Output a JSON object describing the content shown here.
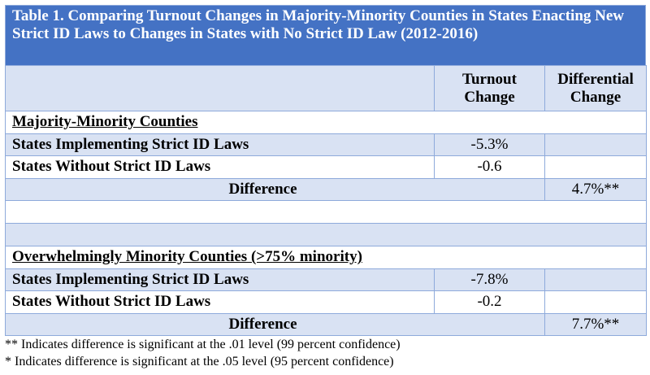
{
  "table": {
    "title": "Table 1.  Comparing Turnout Changes in Majority-Minority Counties in States Enacting New Strict ID Laws to Changes in States with No Strict ID Law (2012-2016)",
    "col_turnout": "Turnout Change",
    "col_differential": "Differential Change",
    "sections": [
      {
        "heading": "Majority-Minority Counties",
        "row1_label": "States Implementing Strict ID Laws",
        "row1_value": "-5.3%",
        "row2_label": "States Without Strict ID Laws",
        "row2_value": "-0.6",
        "diff_label": "Difference",
        "diff_value": "4.7%**"
      },
      {
        "heading": "Overwhelmingly Minority Counties (>75% minority)",
        "row1_label": "States Implementing Strict ID Laws",
        "row1_value": "-7.8%",
        "row2_label": "States Without Strict ID Laws",
        "row2_value": "-0.2",
        "diff_label": "Difference",
        "diff_value": "7.7%**"
      }
    ]
  },
  "notes": [
    "** Indicates difference is significant at the .01 level (99 percent confidence)",
    "* Indicates difference is significant at the .05 level (95 percent confidence)"
  ],
  "colors": {
    "title_bg": "#4472c4",
    "shade": "#d9e2f3",
    "border": "#8eaadb"
  }
}
